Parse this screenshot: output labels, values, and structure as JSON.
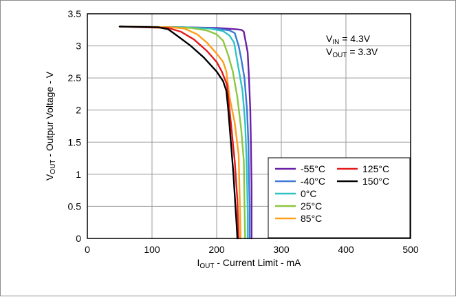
{
  "chart_data": {
    "type": "line",
    "title": "",
    "xlabel": {
      "main": "I",
      "sub": "OUT",
      "rest": " - Current Limit - mA"
    },
    "ylabel": {
      "main": "V",
      "sub": "OUT",
      "rest": " - Outpur Voltage - V"
    },
    "xlim": [
      0,
      500
    ],
    "ylim": [
      0,
      3.5
    ],
    "xticks": [
      0,
      100,
      200,
      300,
      400,
      500
    ],
    "yticks": [
      0,
      0.5,
      1,
      1.5,
      2,
      2.5,
      3,
      3.5
    ],
    "xtick_labels": [
      "0",
      "100",
      "200",
      "300",
      "400",
      "500"
    ],
    "ytick_labels": [
      "0",
      "0.5",
      "1",
      "1.5",
      "2",
      "2.5",
      "3",
      "3.5"
    ],
    "grid": true,
    "legend_position": "bottom-right",
    "annotation": [
      {
        "main": "V",
        "sub": "IN",
        "rest": " = 4.3V"
      },
      {
        "main": "V",
        "sub": "OUT",
        "rest": " = 3.3V"
      }
    ],
    "series": [
      {
        "name": "-55°C",
        "color": "#6a1fa6",
        "x": [
          50,
          150,
          200,
          230,
          238,
          240,
          242,
          248,
          250,
          252,
          253,
          254,
          254
        ],
        "y": [
          3.3,
          3.29,
          3.28,
          3.26,
          3.25,
          3.24,
          3.22,
          2.9,
          2.5,
          2.0,
          1.5,
          0.8,
          0
        ]
      },
      {
        "name": "-40°C",
        "color": "#3b78d8",
        "x": [
          50,
          150,
          200,
          220,
          228,
          234,
          238,
          243,
          247,
          249,
          250,
          251,
          251
        ],
        "y": [
          3.3,
          3.29,
          3.27,
          3.24,
          3.2,
          3.0,
          2.8,
          2.5,
          2.0,
          1.5,
          1.0,
          0.5,
          0
        ]
      },
      {
        "name": "0°C",
        "color": "#2fc3c3",
        "x": [
          50,
          150,
          190,
          210,
          220,
          227,
          233,
          240,
          244,
          246,
          247,
          248,
          248
        ],
        "y": [
          3.3,
          3.29,
          3.27,
          3.23,
          3.16,
          3.05,
          2.7,
          2.3,
          1.8,
          1.3,
          0.9,
          0.4,
          0
        ]
      },
      {
        "name": "25°C",
        "color": "#8cc63f",
        "x": [
          50,
          130,
          160,
          185,
          200,
          210,
          218,
          225,
          232,
          238,
          242,
          243,
          244
        ],
        "y": [
          3.3,
          3.29,
          3.28,
          3.24,
          3.18,
          3.08,
          2.85,
          2.6,
          2.2,
          1.7,
          1.2,
          0.6,
          0
        ]
      },
      {
        "name": "85°C",
        "color": "#ff9e1b",
        "x": [
          50,
          130,
          150,
          170,
          185,
          200,
          210,
          215,
          220,
          228,
          234,
          236,
          237
        ],
        "y": [
          3.3,
          3.29,
          3.27,
          3.18,
          3.05,
          2.88,
          2.75,
          2.6,
          2.2,
          1.8,
          1.3,
          0.5,
          0
        ]
      },
      {
        "name": "125°C",
        "color": "#e41a1c",
        "x": [
          50,
          125,
          145,
          165,
          185,
          200,
          208,
          216,
          222,
          228,
          232,
          233,
          234
        ],
        "y": [
          3.3,
          3.28,
          3.22,
          3.1,
          2.92,
          2.75,
          2.6,
          2.4,
          1.8,
          1.2,
          0.6,
          0.3,
          0
        ]
      },
      {
        "name": "150°C",
        "color": "#000000",
        "x": [
          50,
          110,
          125,
          140,
          160,
          180,
          200,
          210,
          215,
          218,
          222,
          226,
          229,
          231,
          232
        ],
        "y": [
          3.3,
          3.29,
          3.26,
          3.15,
          3.0,
          2.82,
          2.6,
          2.45,
          2.3,
          2.0,
          1.5,
          1.0,
          0.5,
          0.2,
          0
        ]
      }
    ]
  }
}
